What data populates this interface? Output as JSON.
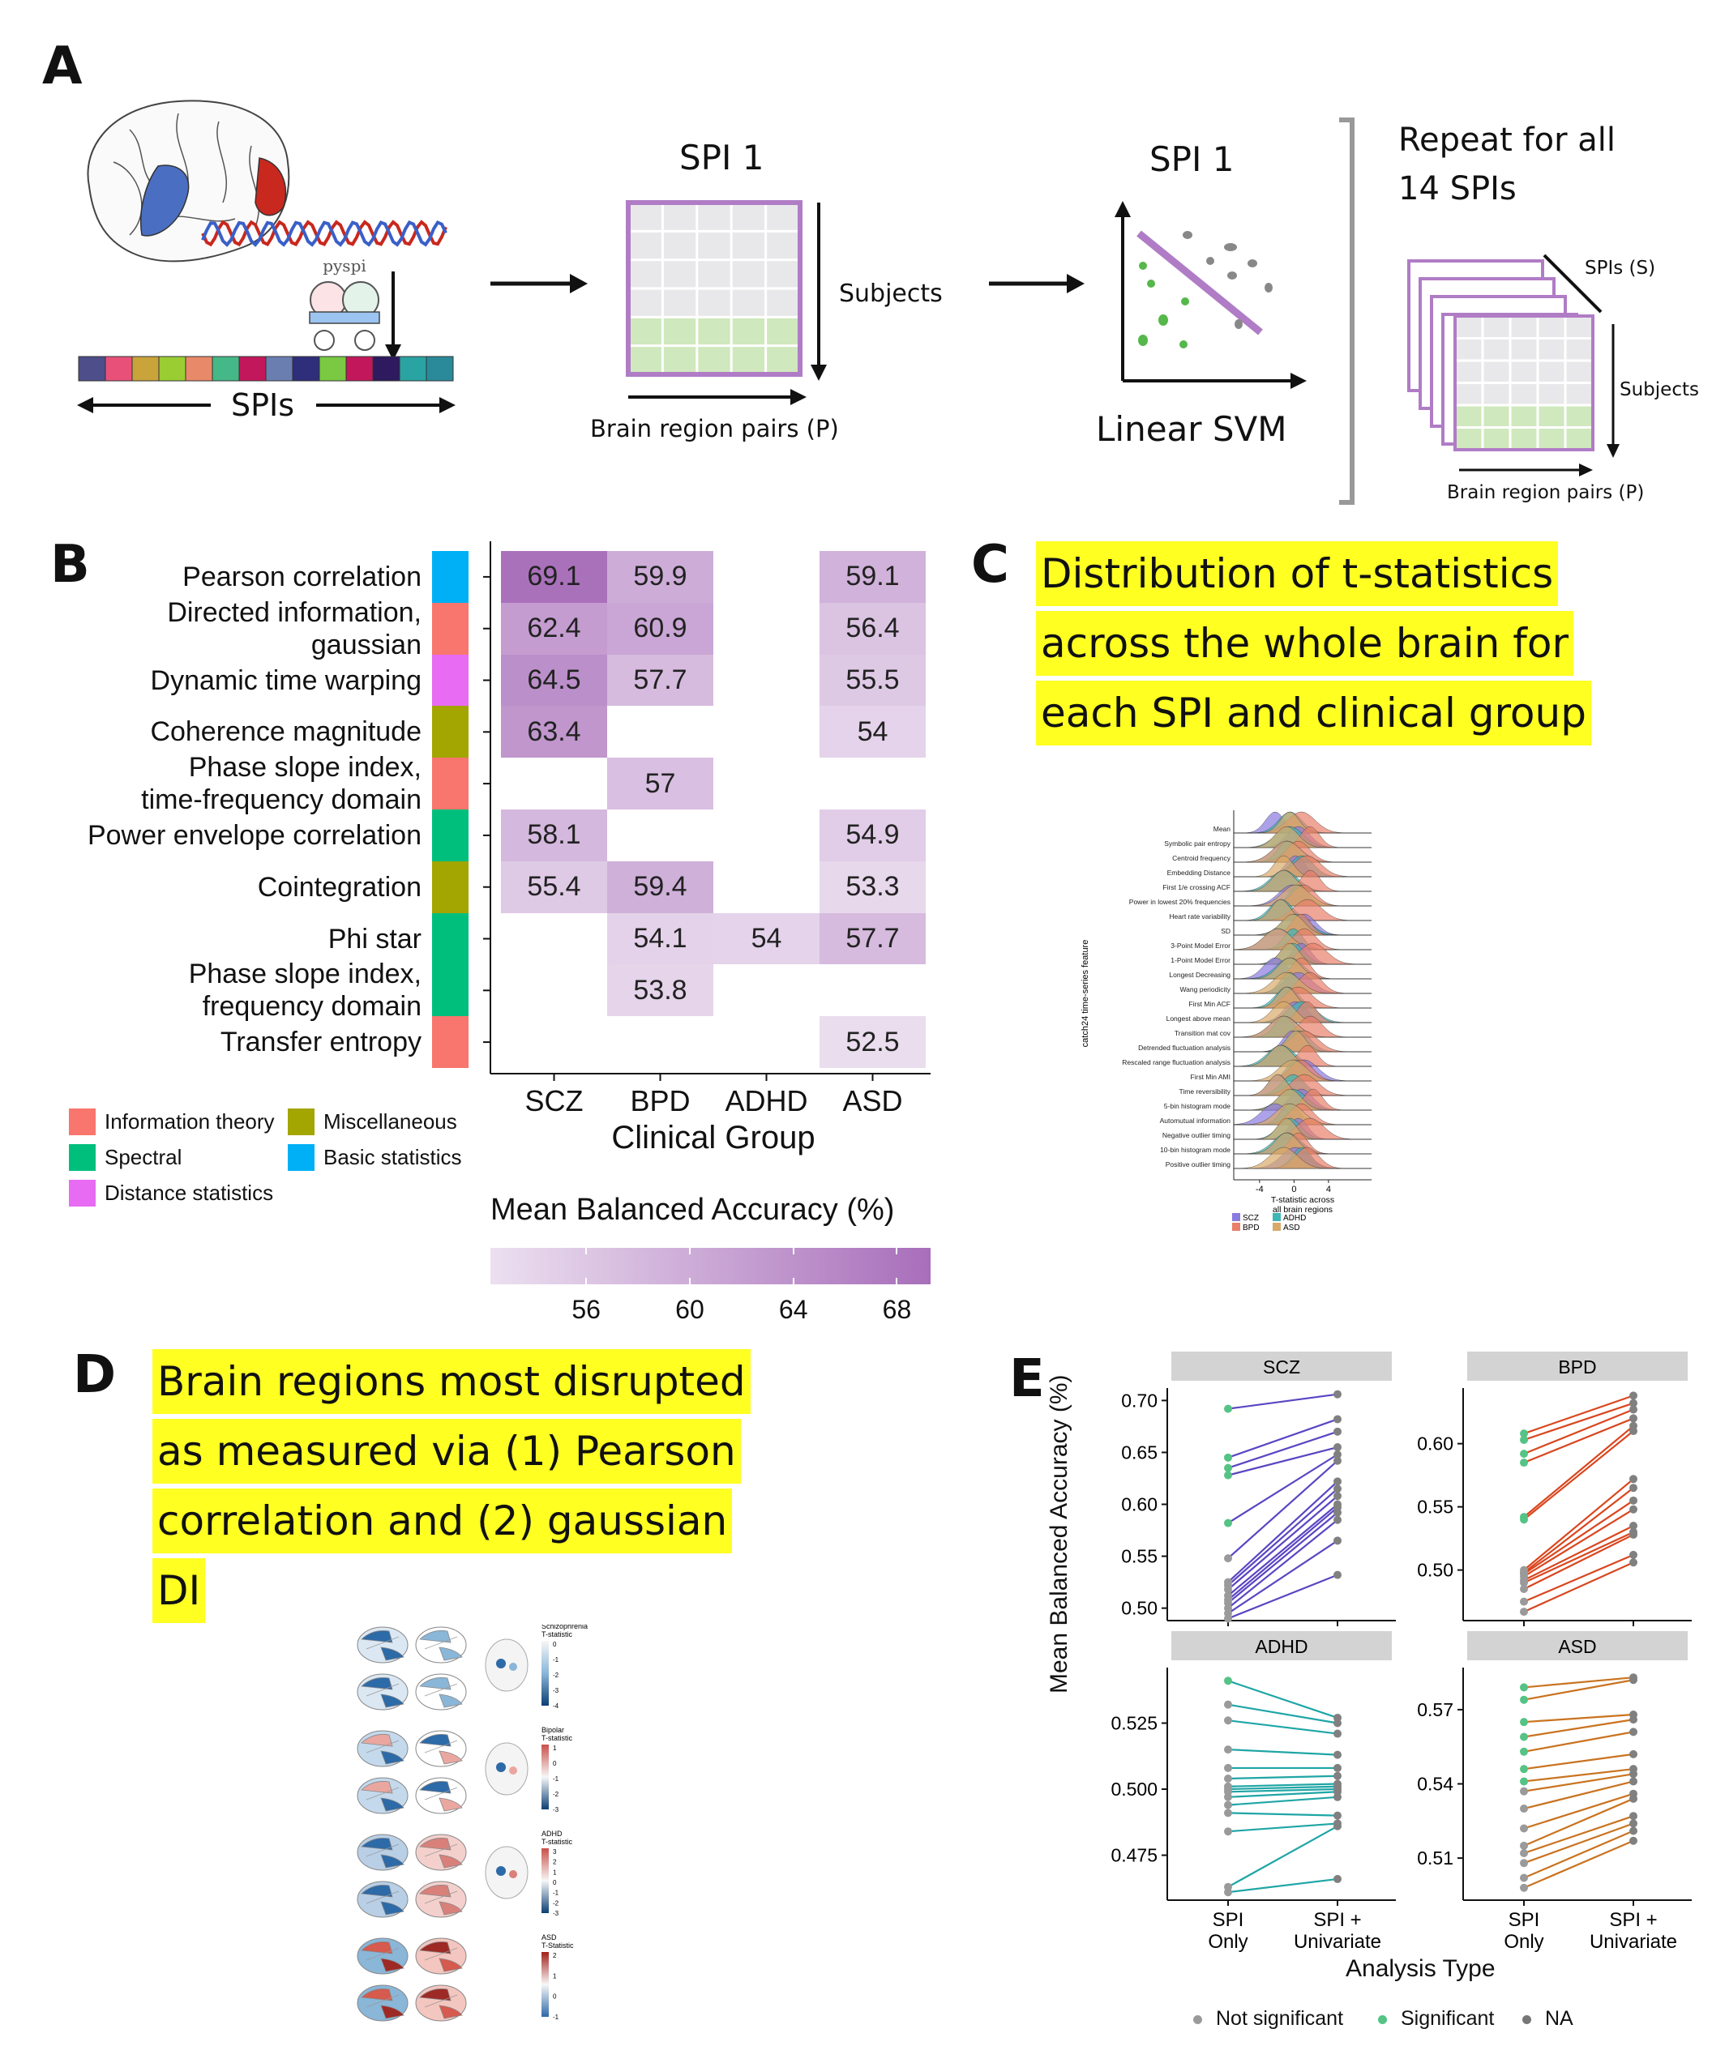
{
  "panel_labels": {
    "A": "A",
    "B": "B",
    "C": "C",
    "D": "D",
    "E": "E"
  },
  "panel_a": {
    "spi_matrix_title": "SPI 1",
    "svm_title": "SPI 1",
    "spis_label": "SPIs",
    "subjects_label": "Subjects",
    "brain_pairs_label": "Brain region pairs (P)",
    "linear_svm_label": "Linear SVM",
    "repeat_label_line1": "Repeat for all",
    "repeat_label_line2": "14 SPIs",
    "stack_spis_label": "SPIs (S)",
    "stack_subjects_label": "Subjects",
    "stack_brain_pairs_label": "Brain region pairs (P)",
    "pyspi_label": "pyspi",
    "spi_bar_colors": [
      "#4e4e8a",
      "#e8507a",
      "#c9a43a",
      "#9acd32",
      "#e88a6a",
      "#45b888",
      "#c2185b",
      "#6a7fb0",
      "#2e2e7a",
      "#7ac943",
      "#c2185b",
      "#2e1a5e",
      "#2aa3a3",
      "#2a8a9a"
    ]
  },
  "chart_data": [
    {
      "type": "heatmap",
      "panel": "B",
      "rows": [
        {
          "label_lines": [
            "Pearson correlation"
          ],
          "category": "Basic statistics"
        },
        {
          "label_lines": [
            "Directed information,",
            "gaussian"
          ],
          "category": "Information theory"
        },
        {
          "label_lines": [
            "Dynamic time warping"
          ],
          "category": "Distance statistics"
        },
        {
          "label_lines": [
            "Coherence magnitude"
          ],
          "category": "Miscellaneous"
        },
        {
          "label_lines": [
            "Phase slope index,",
            "time-frequency domain"
          ],
          "category": "Information theory"
        },
        {
          "label_lines": [
            "Power envelope correlation"
          ],
          "category": "Spectral"
        },
        {
          "label_lines": [
            "Cointegration"
          ],
          "category": "Miscellaneous"
        },
        {
          "label_lines": [
            "Phi star"
          ],
          "category": "Spectral"
        },
        {
          "label_lines": [
            "Phase slope index,",
            "frequency domain"
          ],
          "category": "Spectral"
        },
        {
          "label_lines": [
            "Transfer entropy"
          ],
          "category": "Information theory"
        }
      ],
      "columns": [
        "SCZ",
        "BPD",
        "ADHD",
        "ASD"
      ],
      "values": [
        [
          69.1,
          59.9,
          null,
          59.1
        ],
        [
          62.4,
          60.9,
          null,
          56.4
        ],
        [
          64.5,
          57.7,
          null,
          55.5
        ],
        [
          63.4,
          null,
          null,
          54
        ],
        [
          null,
          57,
          null,
          null
        ],
        [
          58.1,
          null,
          null,
          54.9
        ],
        [
          55.4,
          59.4,
          null,
          53.3
        ],
        [
          null,
          54.1,
          54,
          57.7
        ],
        [
          null,
          53.8,
          null,
          null
        ],
        [
          null,
          null,
          null,
          52.5
        ]
      ],
      "xlabel": "Clinical Group",
      "colorbar_title": "Mean Balanced Accuracy (%)",
      "colorbar_ticks": [
        56,
        60,
        64,
        68
      ],
      "colorbar_range": [
        52,
        69.5
      ],
      "category_legend": [
        {
          "name": "Information theory",
          "color": "#f8766d"
        },
        {
          "name": "Miscellaneous",
          "color": "#a3a500"
        },
        {
          "name": "Spectral",
          "color": "#00bf7d"
        },
        {
          "name": "Basic statistics",
          "color": "#00b0f6"
        },
        {
          "name": "Distance statistics",
          "color": "#e76bf3"
        }
      ]
    },
    {
      "type": "line",
      "panel": "E",
      "ylabel": "Mean Balanced Accuracy (%)",
      "xlabel": "Analysis Type",
      "x_categories": [
        "SPI Only",
        "SPI + Univariate"
      ],
      "legend": [
        {
          "name": "Not significant",
          "color": "#9a9a9a"
        },
        {
          "name": "Significant",
          "color": "#55c385"
        },
        {
          "name": "NA",
          "color": "#777777"
        }
      ],
      "facets": [
        {
          "name": "SCZ",
          "color": "#5b45c2",
          "ylim": [
            0.488,
            0.712
          ],
          "yticks": [
            0.5,
            0.55,
            0.6,
            0.65,
            0.7
          ],
          "pairs": [
            [
              0.692,
              0.706
            ],
            [
              0.645,
              0.682
            ],
            [
              0.635,
              0.67
            ],
            [
              0.628,
              0.655
            ],
            [
              0.582,
              0.648
            ],
            [
              0.548,
              0.642
            ],
            [
              0.525,
              0.622
            ],
            [
              0.522,
              0.615
            ],
            [
              0.518,
              0.608
            ],
            [
              0.512,
              0.6
            ],
            [
              0.508,
              0.597
            ],
            [
              0.505,
              0.592
            ],
            [
              0.5,
              0.585
            ],
            [
              0.495,
              0.565
            ],
            [
              0.49,
              0.532
            ]
          ],
          "sig": [
            true,
            true,
            true,
            true,
            true,
            false,
            false,
            false,
            false,
            false,
            false,
            false,
            false,
            false,
            false
          ]
        },
        {
          "name": "BPD",
          "color": "#d9461e",
          "ylim": [
            0.46,
            0.644
          ],
          "yticks": [
            0.5,
            0.55,
            0.6
          ],
          "pairs": [
            [
              0.608,
              0.638
            ],
            [
              0.603,
              0.632
            ],
            [
              0.592,
              0.627
            ],
            [
              0.585,
              0.62
            ],
            [
              0.542,
              0.614
            ],
            [
              0.54,
              0.61
            ],
            [
              0.5,
              0.572
            ],
            [
              0.498,
              0.565
            ],
            [
              0.497,
              0.555
            ],
            [
              0.495,
              0.548
            ],
            [
              0.492,
              0.535
            ],
            [
              0.49,
              0.53
            ],
            [
              0.485,
              0.528
            ],
            [
              0.475,
              0.512
            ],
            [
              0.467,
              0.506
            ]
          ],
          "sig": [
            true,
            true,
            true,
            true,
            true,
            true,
            false,
            false,
            false,
            false,
            false,
            false,
            false,
            false,
            false
          ]
        },
        {
          "name": "ADHD",
          "color": "#1fa5a5",
          "ylim": [
            0.458,
            0.546
          ],
          "yticks": [
            0.475,
            0.5,
            0.525
          ],
          "pairs": [
            [
              0.541,
              0.527
            ],
            [
              0.532,
              0.525
            ],
            [
              0.526,
              0.521
            ],
            [
              0.515,
              0.513
            ],
            [
              0.508,
              0.508
            ],
            [
              0.504,
              0.505
            ],
            [
              0.501,
              0.502
            ],
            [
              0.5,
              0.501
            ],
            [
              0.499,
              0.5
            ],
            [
              0.497,
              0.499
            ],
            [
              0.494,
              0.497
            ],
            [
              0.491,
              0.49
            ],
            [
              0.484,
              0.487
            ],
            [
              0.463,
              0.486
            ],
            [
              0.461,
              0.466
            ]
          ],
          "sig": [
            true,
            false,
            false,
            false,
            false,
            false,
            false,
            false,
            false,
            false,
            false,
            false,
            false,
            false,
            false
          ]
        },
        {
          "name": "ASD",
          "color": "#c97320",
          "ylim": [
            0.493,
            0.587
          ],
          "yticks": [
            0.51,
            0.54,
            0.57
          ],
          "pairs": [
            [
              0.579,
              0.583
            ],
            [
              0.574,
              0.582
            ],
            [
              0.565,
              0.568
            ],
            [
              0.559,
              0.566
            ],
            [
              0.553,
              0.561
            ],
            [
              0.546,
              0.552
            ],
            [
              0.541,
              0.546
            ],
            [
              0.537,
              0.544
            ],
            [
              0.53,
              0.541
            ],
            [
              0.522,
              0.536
            ],
            [
              0.515,
              0.534
            ],
            [
              0.512,
              0.527
            ],
            [
              0.508,
              0.524
            ],
            [
              0.502,
              0.521
            ],
            [
              0.498,
              0.517
            ]
          ],
          "sig": [
            true,
            true,
            true,
            true,
            true,
            true,
            true,
            false,
            false,
            false,
            false,
            false,
            false,
            false,
            false
          ]
        }
      ]
    }
  ],
  "panel_c": {
    "title_lines": [
      "Distribution of t-statistics ",
      "across the whole brain for ",
      "each SPI and clinical group"
    ],
    "ylabel": "catch24 time-series feature",
    "xlabel_lines": [
      "T-statistic across",
      "all brain regions"
    ],
    "xticks": [
      "-4",
      "0",
      "4"
    ],
    "features": [
      "Mean",
      "Symbolic pair entropy",
      "Centroid frequency",
      "Embedding Distance",
      "First 1/e crossing ACF",
      "Power in lowest 20% frequencies",
      "Heart rate variability",
      "SD",
      "3-Point Model Error",
      "1-Point Model Error",
      "Longest Decreasing",
      "Wang periodicity",
      "First Min ACF",
      "Longest above mean",
      "Transition mat cov",
      "Detrended fluctuation analysis",
      "Rescaled range fluctuation analysis",
      "First Min AMI",
      "Time reversibility",
      "5-bin histogram mode",
      "Automutual information",
      "Negative outlier timing",
      "10-bin histogram mode",
      "Positive outlier timing"
    ],
    "legend": [
      {
        "name": "SCZ",
        "color": "#8a7be0"
      },
      {
        "name": "ADHD",
        "color": "#3fb5b5"
      },
      {
        "name": "BPD",
        "color": "#e8806a"
      },
      {
        "name": "ASD",
        "color": "#d9a96a"
      }
    ]
  },
  "panel_d": {
    "title_lines": [
      "Brain regions most disrupted ",
      "as measured via (1) Pearson ",
      "correlation and (2) gaussian ",
      "DI"
    ],
    "groups": [
      {
        "title": "Schizophrenia",
        "subtitle": "T-statistic",
        "ticks": [
          "0",
          "-1",
          "-2",
          "-3",
          "-4"
        ]
      },
      {
        "title": "Bipolar",
        "subtitle": "T-statistic",
        "ticks": [
          "1",
          "0",
          "-1",
          "-2",
          "-3"
        ]
      },
      {
        "title": "ADHD",
        "subtitle": "T-statistic",
        "ticks": [
          "3",
          "2",
          "1",
          "0",
          "-1",
          "-2",
          "-3"
        ]
      },
      {
        "title": "ASD",
        "subtitle": "T-Statistic",
        "ticks": [
          "2",
          "1",
          "0",
          "-1"
        ]
      }
    ]
  }
}
